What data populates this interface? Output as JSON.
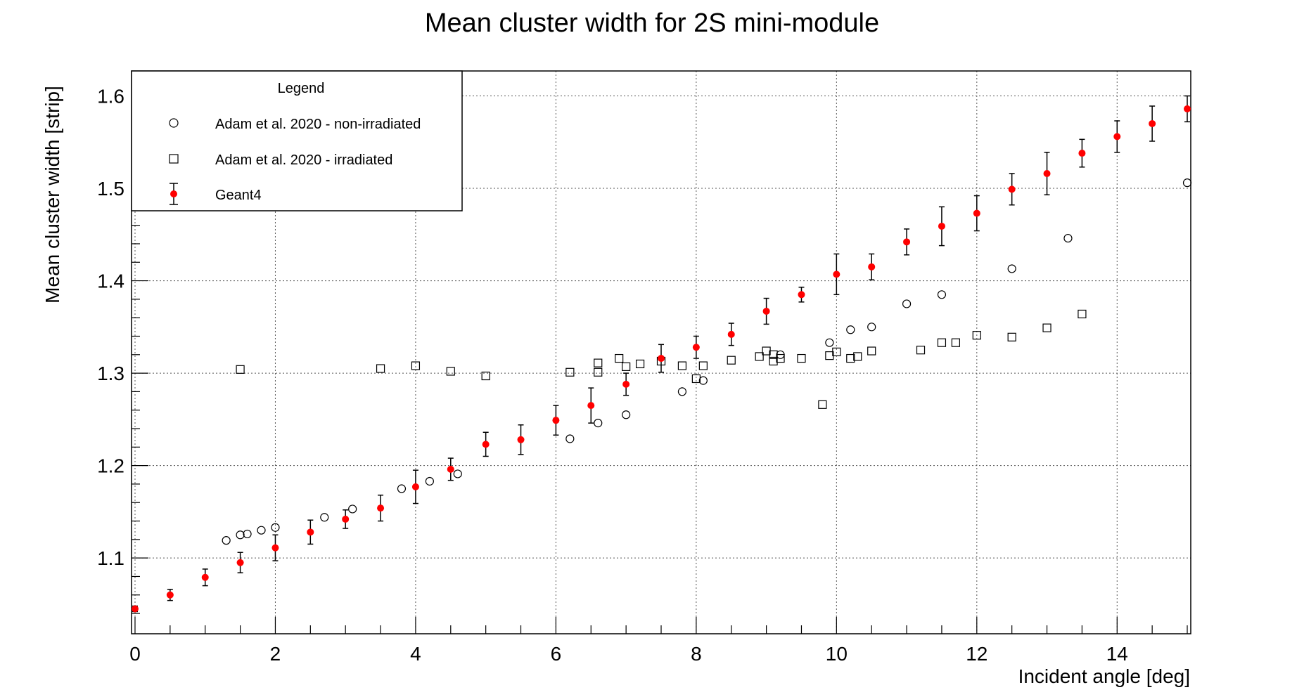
{
  "chart_data": {
    "type": "scatter",
    "title": "Mean cluster width for 2S mini-module",
    "xlabel": "Incident angle [deg]",
    "ylabel": "Mean cluster width [strip]",
    "xlim": [
      -0.05,
      15.05
    ],
    "ylim": [
      1.018,
      1.627
    ],
    "x_ticks": [
      0,
      2,
      4,
      6,
      8,
      10,
      12,
      14
    ],
    "y_ticks": [
      1.1,
      1.2,
      1.3,
      1.4,
      1.5,
      1.6
    ],
    "x_tick_labels": [
      "0",
      "2",
      "4",
      "6",
      "8",
      "10",
      "12",
      "14"
    ],
    "y_tick_labels": [
      "1.1",
      "1.2",
      "1.3",
      "1.4",
      "1.5",
      "1.6"
    ],
    "grid": true,
    "legend": {
      "title": "Legend",
      "placement": "top-left",
      "entries": [
        {
          "label": "Adam et al. 2020 - non-irradiated",
          "marker": "open-circle"
        },
        {
          "label": "Adam et al. 2020 - irradiated",
          "marker": "open-square"
        },
        {
          "label": "Geant4",
          "marker": "red-dot-errorbar"
        }
      ]
    },
    "series": [
      {
        "name": "Adam et al. 2020 - non-irradiated",
        "marker": "open-circle",
        "color": "#000000",
        "points": [
          [
            1.3,
            1.119
          ],
          [
            1.5,
            1.125
          ],
          [
            1.6,
            1.126
          ],
          [
            1.8,
            1.13
          ],
          [
            2.0,
            1.133
          ],
          [
            2.7,
            1.144
          ],
          [
            3.1,
            1.153
          ],
          [
            3.8,
            1.175
          ],
          [
            4.2,
            1.183
          ],
          [
            4.6,
            1.191
          ],
          [
            6.2,
            1.229
          ],
          [
            6.6,
            1.246
          ],
          [
            7.0,
            1.255
          ],
          [
            7.8,
            1.28
          ],
          [
            8.1,
            1.292
          ],
          [
            9.2,
            1.32
          ],
          [
            9.9,
            1.333
          ],
          [
            10.2,
            1.347
          ],
          [
            10.5,
            1.35
          ],
          [
            11.0,
            1.375
          ],
          [
            11.5,
            1.385
          ],
          [
            12.5,
            1.413
          ],
          [
            13.3,
            1.446
          ],
          [
            15.0,
            1.506
          ]
        ]
      },
      {
        "name": "Adam et al. 2020 - irradiated",
        "marker": "open-square",
        "color": "#000000",
        "points": [
          [
            1.5,
            1.304
          ],
          [
            3.5,
            1.305
          ],
          [
            4.0,
            1.308
          ],
          [
            4.5,
            1.302
          ],
          [
            5.0,
            1.297
          ],
          [
            6.2,
            1.301
          ],
          [
            6.6,
            1.301
          ],
          [
            6.6,
            1.311
          ],
          [
            6.9,
            1.316
          ],
          [
            7.0,
            1.307
          ],
          [
            7.2,
            1.31
          ],
          [
            7.5,
            1.313
          ],
          [
            7.8,
            1.308
          ],
          [
            8.0,
            1.294
          ],
          [
            8.1,
            1.308
          ],
          [
            8.5,
            1.314
          ],
          [
            8.9,
            1.318
          ],
          [
            9.0,
            1.324
          ],
          [
            9.1,
            1.32
          ],
          [
            9.1,
            1.313
          ],
          [
            9.2,
            1.316
          ],
          [
            9.5,
            1.316
          ],
          [
            9.8,
            1.266
          ],
          [
            9.9,
            1.319
          ],
          [
            10.0,
            1.323
          ],
          [
            10.2,
            1.316
          ],
          [
            10.3,
            1.318
          ],
          [
            10.5,
            1.324
          ],
          [
            11.2,
            1.325
          ],
          [
            11.5,
            1.333
          ],
          [
            11.7,
            1.333
          ],
          [
            12.0,
            1.341
          ],
          [
            12.5,
            1.339
          ],
          [
            13.0,
            1.349
          ],
          [
            13.5,
            1.364
          ]
        ]
      },
      {
        "name": "Geant4",
        "marker": "red-dot-errorbar",
        "color": "#ff0000",
        "points": [
          [
            0.0,
            1.045,
            0.003
          ],
          [
            0.5,
            1.06,
            0.006
          ],
          [
            1.0,
            1.079,
            0.009
          ],
          [
            1.5,
            1.095,
            0.011
          ],
          [
            2.0,
            1.111,
            0.014
          ],
          [
            2.5,
            1.128,
            0.013
          ],
          [
            3.0,
            1.142,
            0.01
          ],
          [
            3.5,
            1.154,
            0.014
          ],
          [
            4.0,
            1.177,
            0.018
          ],
          [
            4.5,
            1.196,
            0.012
          ],
          [
            5.0,
            1.223,
            0.013
          ],
          [
            5.5,
            1.228,
            0.016
          ],
          [
            6.0,
            1.249,
            0.016
          ],
          [
            6.5,
            1.265,
            0.019
          ],
          [
            7.0,
            1.288,
            0.012
          ],
          [
            7.5,
            1.316,
            0.015
          ],
          [
            8.0,
            1.328,
            0.012
          ],
          [
            8.5,
            1.342,
            0.012
          ],
          [
            9.0,
            1.367,
            0.014
          ],
          [
            9.5,
            1.385,
            0.008
          ],
          [
            10.0,
            1.407,
            0.022
          ],
          [
            10.5,
            1.415,
            0.014
          ],
          [
            11.0,
            1.442,
            0.014
          ],
          [
            11.5,
            1.459,
            0.021
          ],
          [
            12.0,
            1.473,
            0.019
          ],
          [
            12.5,
            1.499,
            0.017
          ],
          [
            13.0,
            1.516,
            0.023
          ],
          [
            13.5,
            1.538,
            0.015
          ],
          [
            14.0,
            1.556,
            0.017
          ],
          [
            14.5,
            1.57,
            0.019
          ],
          [
            15.0,
            1.586,
            0.014
          ]
        ]
      }
    ]
  }
}
